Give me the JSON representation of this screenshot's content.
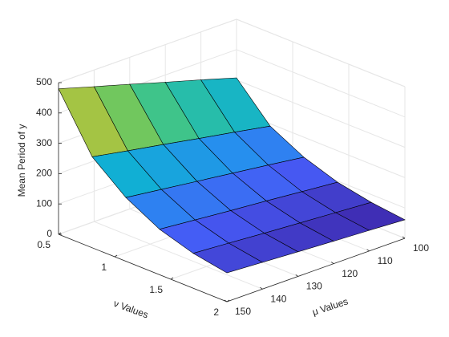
{
  "chart_data": {
    "type": "surface",
    "xlabel": "ν Values",
    "ylabel": "μ Values",
    "zlabel": "Mean Period of  y",
    "x": [
      0.5,
      0.8,
      1.1,
      1.4,
      1.7,
      2.0
    ],
    "y": [
      100,
      110,
      120,
      130,
      140,
      150
    ],
    "z": [
      [
        307,
        342,
        376,
        411,
        445,
        480
      ],
      [
        192,
        214,
        235,
        257,
        278,
        300
      ],
      [
        134,
        150,
        165,
        180,
        195,
        210
      ],
      [
        96,
        107,
        118,
        128,
        139,
        150
      ],
      [
        74,
        82,
        90,
        98,
        107,
        115
      ],
      [
        61,
        68,
        74,
        81,
        88,
        95
      ]
    ],
    "xlim": [
      0.5,
      2
    ],
    "ylim": [
      100,
      150
    ],
    "zlim": [
      0,
      500
    ],
    "xticks": [
      0.5,
      1,
      1.5,
      2
    ],
    "yticks": [
      100,
      110,
      120,
      130,
      140,
      150
    ],
    "zticks": [
      0,
      100,
      200,
      300,
      400,
      500
    ],
    "colormap": "parula",
    "grid": true
  }
}
